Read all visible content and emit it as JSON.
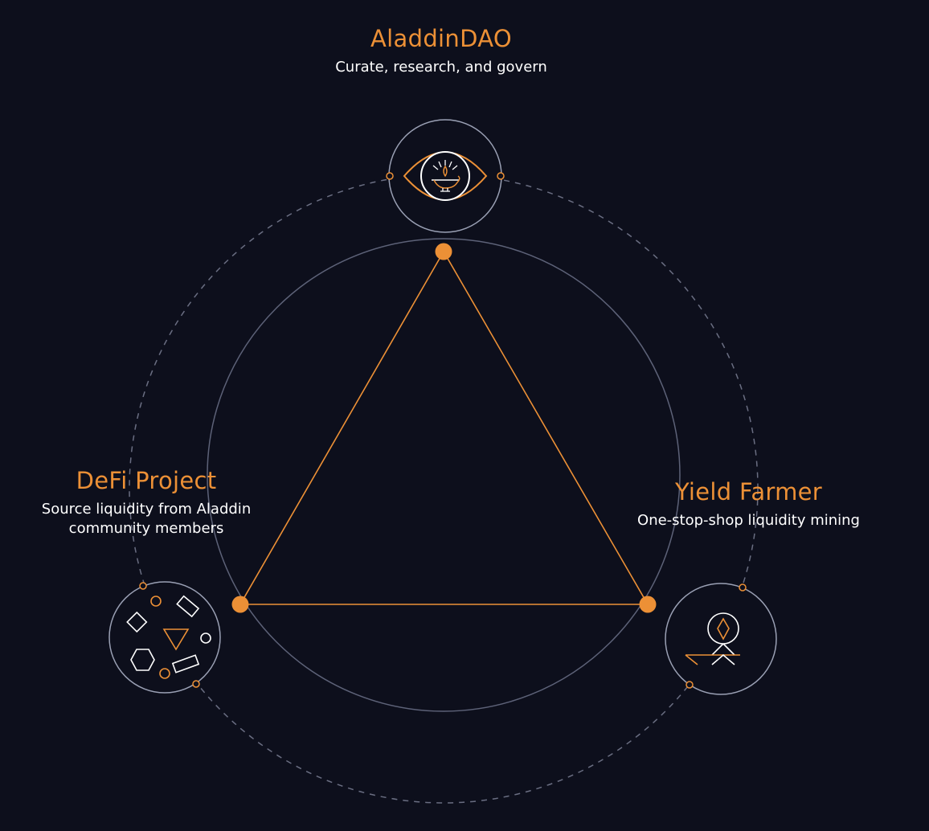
{
  "nodes": {
    "aladdin": {
      "title": "AladdinDAO",
      "subtitle": "Curate, research, and govern",
      "icon": "lamp-eye-icon"
    },
    "defi": {
      "title": "DeFi Project",
      "subtitle": "Source liquidity from Aladdin community members",
      "icon": "scattered-shapes-icon"
    },
    "yield": {
      "title": "Yield Farmer",
      "subtitle": "One-stop-shop liquidity mining",
      "icon": "farmer-icon"
    }
  },
  "colors": {
    "background": "#0d0f1c",
    "accent": "#ec9036",
    "circle_stroke": "#5d6278",
    "dashed_stroke": "#6a6e82",
    "text": "#ffffff"
  }
}
